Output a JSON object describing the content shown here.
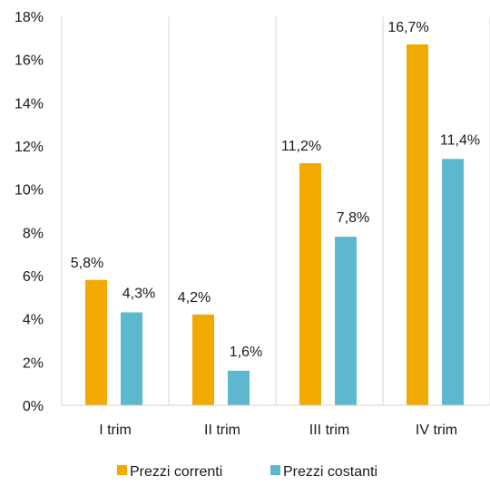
{
  "chart_data": {
    "type": "bar",
    "categories": [
      "I trim",
      "II trim",
      "III trim",
      "IV trim"
    ],
    "series": [
      {
        "name": "Prezzi correnti",
        "values": [
          5.8,
          4.2,
          11.2,
          16.7
        ],
        "labels": [
          "5,8%",
          "4,2%",
          "11,2%",
          "16,7%"
        ],
        "color": "#f2aa00"
      },
      {
        "name": "Prezzi costanti",
        "values": [
          4.3,
          1.6,
          7.8,
          11.4
        ],
        "labels": [
          "4,3%",
          "1,6%",
          "7,8%",
          "11,4%"
        ],
        "color": "#5bb8cd"
      }
    ],
    "ylim": [
      0,
      18
    ],
    "yticks": [
      0,
      2,
      4,
      6,
      8,
      10,
      12,
      14,
      16,
      18
    ],
    "ytick_labels": [
      "0%",
      "2%",
      "4%",
      "6%",
      "8%",
      "10%",
      "12%",
      "14%",
      "16%",
      "18%"
    ],
    "grid": "vertical category separators",
    "legend_position": "bottom"
  }
}
